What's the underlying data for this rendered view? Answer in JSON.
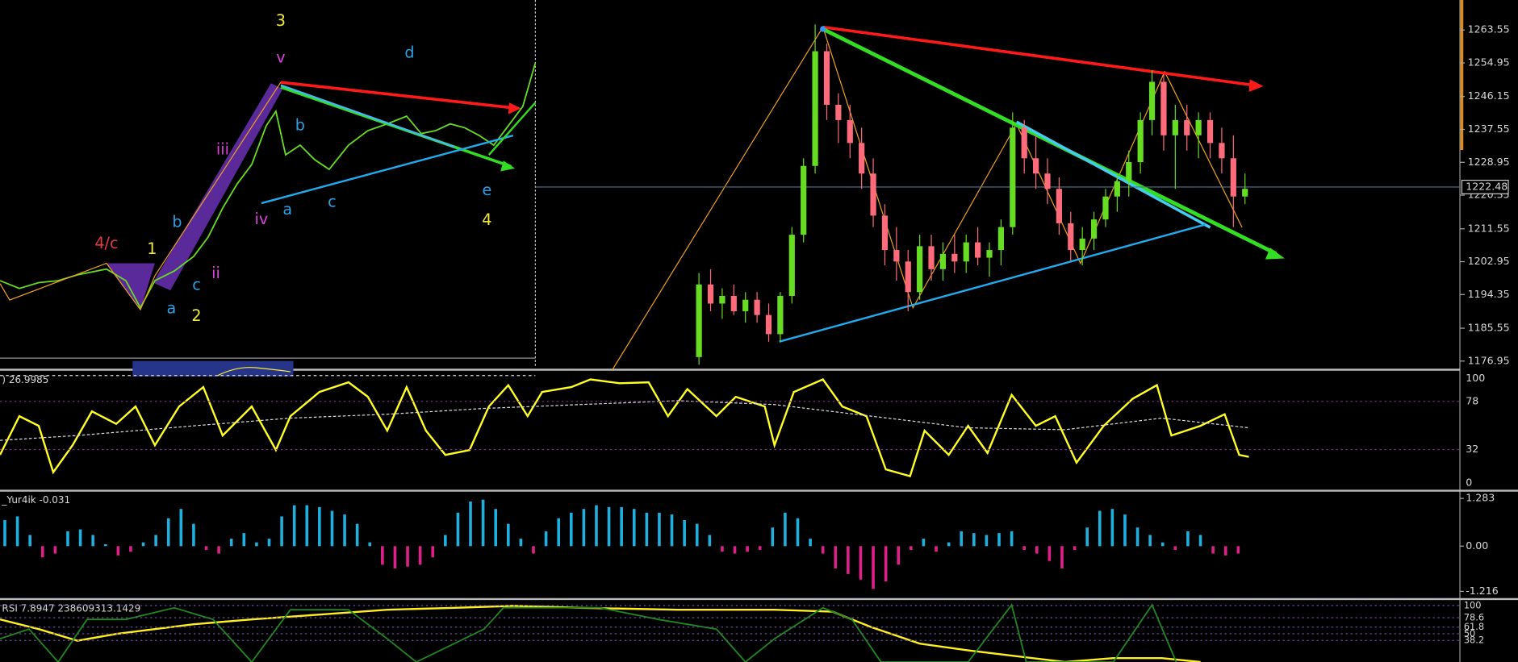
{
  "price_chart": {
    "type": "candlestick",
    "ylim": [
      1175.2,
      1271.4
    ],
    "yticks": [
      1263.55,
      1254.95,
      1246.15,
      1237.55,
      1228.95,
      1220.35,
      1211.55,
      1202.95,
      1194.35,
      1185.55,
      1176.95
    ],
    "current_price": 1222.48,
    "up_color": "#66dd22",
    "down_color": "#ff6b7a",
    "ohlc": [
      [
        1178,
        1200,
        1176,
        1197
      ],
      [
        1197,
        1201,
        1190,
        1192
      ],
      [
        1192,
        1196,
        1188,
        1194
      ],
      [
        1194,
        1197,
        1189,
        1190
      ],
      [
        1190,
        1195,
        1187,
        1193
      ],
      [
        1193,
        1195,
        1187,
        1189
      ],
      [
        1189,
        1192,
        1182,
        1184
      ],
      [
        1184,
        1195,
        1182,
        1194
      ],
      [
        1194,
        1212,
        1192,
        1210
      ],
      [
        1210,
        1230,
        1208,
        1228
      ],
      [
        1228,
        1265,
        1226,
        1258
      ],
      [
        1258,
        1260,
        1240,
        1244
      ],
      [
        1244,
        1247,
        1234,
        1240
      ],
      [
        1240,
        1244,
        1230,
        1234
      ],
      [
        1234,
        1238,
        1222,
        1226
      ],
      [
        1226,
        1230,
        1212,
        1215
      ],
      [
        1215,
        1218,
        1202,
        1206
      ],
      [
        1206,
        1212,
        1198,
        1203
      ],
      [
        1203,
        1206,
        1190,
        1195
      ],
      [
        1195,
        1210,
        1193,
        1207
      ],
      [
        1207,
        1210,
        1198,
        1201
      ],
      [
        1201,
        1208,
        1198,
        1205
      ],
      [
        1205,
        1210,
        1200,
        1203
      ],
      [
        1203,
        1210,
        1200,
        1208
      ],
      [
        1208,
        1212,
        1202,
        1204
      ],
      [
        1204,
        1208,
        1199,
        1206
      ],
      [
        1206,
        1214,
        1202,
        1212
      ],
      [
        1212,
        1242,
        1210,
        1238
      ],
      [
        1238,
        1240,
        1226,
        1230
      ],
      [
        1230,
        1236,
        1222,
        1226
      ],
      [
        1226,
        1230,
        1218,
        1222
      ],
      [
        1222,
        1225,
        1210,
        1213
      ],
      [
        1213,
        1216,
        1203,
        1206
      ],
      [
        1206,
        1212,
        1202,
        1209
      ],
      [
        1209,
        1216,
        1206,
        1214
      ],
      [
        1214,
        1222,
        1212,
        1220
      ],
      [
        1220,
        1226,
        1216,
        1224
      ],
      [
        1224,
        1232,
        1220,
        1229
      ],
      [
        1229,
        1242,
        1226,
        1240
      ],
      [
        1240,
        1253,
        1236,
        1250
      ],
      [
        1250,
        1252,
        1232,
        1236
      ],
      [
        1236,
        1244,
        1222,
        1240
      ],
      [
        1240,
        1244,
        1232,
        1236
      ],
      [
        1236,
        1242,
        1230,
        1240
      ],
      [
        1240,
        1242,
        1230,
        1234
      ],
      [
        1234,
        1238,
        1226,
        1230
      ],
      [
        1230,
        1236,
        1212,
        1220
      ],
      [
        1220,
        1226,
        1218,
        1222
      ]
    ]
  },
  "wave_labels": [
    "3",
    "v",
    "d",
    "iii",
    "b",
    "a",
    "c",
    "iv",
    "e",
    "4",
    "4/c",
    "1",
    "b",
    "ii",
    "c",
    "a",
    "2"
  ],
  "stochastic": {
    "header": ") 26.9985",
    "ylim": [
      0,
      100
    ],
    "yticks": [
      100,
      78,
      32,
      0
    ]
  },
  "histogram": {
    "header": "_Yur4ik -0.031",
    "ylim": [
      -1.216,
      1.283
    ],
    "yticks": [
      1.283,
      {
        "value": 0,
        "label": "0.00"
      },
      -1.216
    ],
    "positive_color": "#1fb0e0",
    "negative_color": "#e0208a",
    "values": [
      0.7,
      0.8,
      0.3,
      -0.3,
      -0.2,
      0.4,
      0.45,
      0.3,
      0.05,
      -0.25,
      -0.15,
      0.1,
      0.3,
      0.75,
      1.0,
      0.6,
      -0.1,
      -0.2,
      0.2,
      0.35,
      0.1,
      0.2,
      0.8,
      1.1,
      1.1,
      1.05,
      0.95,
      0.85,
      0.6,
      0.1,
      -0.5,
      -0.6,
      -0.55,
      -0.5,
      -0.3,
      0.3,
      0.9,
      1.2,
      1.25,
      1.0,
      0.6,
      0.2,
      -0.2,
      0.4,
      0.75,
      0.9,
      1.0,
      1.1,
      1.05,
      1.05,
      1.0,
      0.9,
      0.9,
      0.85,
      0.7,
      0.6,
      0.3,
      -0.15,
      -0.2,
      -0.15,
      -0.1,
      0.5,
      0.9,
      0.75,
      0.2,
      -0.2,
      -0.6,
      -0.75,
      -0.9,
      -1.15,
      -0.95,
      -0.5,
      -0.1,
      0.2,
      -0.15,
      0.1,
      0.4,
      0.35,
      0.3,
      0.35,
      0.4,
      -0.1,
      -0.2,
      -0.4,
      -0.6,
      -0.1,
      0.5,
      0.95,
      1.0,
      0.85,
      0.5,
      0.3,
      0.1,
      -0.1,
      0.4,
      0.3,
      -0.2,
      -0.25,
      -0.2
    ]
  },
  "rsi": {
    "header": "RSI 7.8947 238609313.1429",
    "ylim": [
      0,
      108
    ],
    "yticks": [
      100,
      78.6,
      61.8,
      50,
      38.2
    ]
  }
}
